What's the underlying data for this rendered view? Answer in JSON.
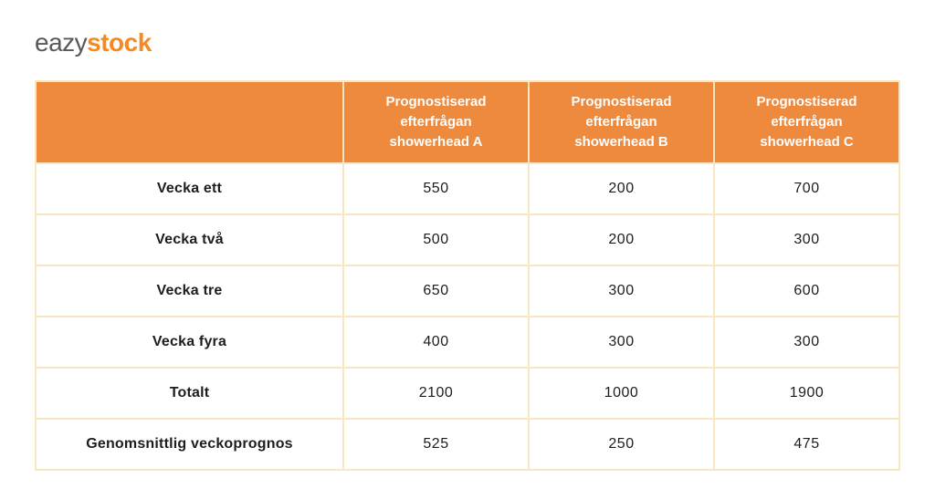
{
  "brand": {
    "logo_prefix": "eazy",
    "logo_suffix": "stock"
  },
  "colors": {
    "header_orange": "#ee8a3e",
    "border_cream": "#fae7c2",
    "logo_gray": "#58595b",
    "logo_orange": "#f6891f",
    "text_dark": "#1d1d1b",
    "background": "#ffffff"
  },
  "chart_data": {
    "type": "table",
    "title": "",
    "columns": [
      "",
      "Prognostiserad efterfrågan showerhead A",
      "Prognostiserad efterfrågan showerhead B",
      "Prognostiserad efterfrågan showerhead C"
    ],
    "rows": [
      {
        "label": "Vecka ett",
        "values": [
          550,
          200,
          700
        ]
      },
      {
        "label": "Vecka två",
        "values": [
          500,
          200,
          300
        ]
      },
      {
        "label": "Vecka tre",
        "values": [
          650,
          300,
          600
        ]
      },
      {
        "label": "Vecka fyra",
        "values": [
          400,
          300,
          300
        ]
      },
      {
        "label": "Totalt",
        "values": [
          2100,
          1000,
          1900
        ]
      },
      {
        "label": "Genomsnittlig veckoprognos",
        "values": [
          525,
          250,
          475
        ]
      }
    ],
    "layout": {
      "header_background": "#ee8a3e",
      "header_text_color": "#ffffff",
      "grid": true
    }
  }
}
